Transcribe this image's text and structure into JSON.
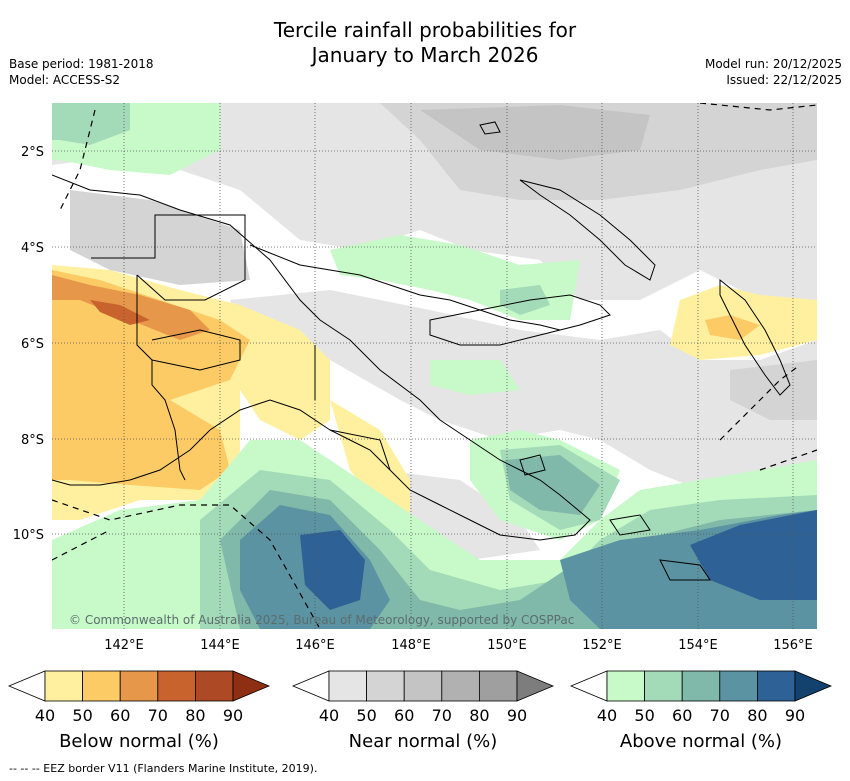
{
  "title_line1": "Tercile rainfall probabilities for",
  "title_line2": "January to March 2026",
  "meta": {
    "base_period": "Base period: 1981-2018",
    "model": "Model: ACCESS-S2",
    "model_run": "Model run: 20/12/2025",
    "issued": "Issued: 22/12/2025"
  },
  "map": {
    "lat_labels": [
      "2°S",
      "4°S",
      "6°S",
      "8°S",
      "10°S"
    ],
    "lon_labels": [
      "142°E",
      "144°E",
      "146°E",
      "148°E",
      "150°E",
      "152°E",
      "154°E",
      "156°E"
    ],
    "copyright": "© Commonwealth of Australia 2025, Bureau of Meteorology, supported by COSPPac"
  },
  "legends": [
    {
      "title": "Below normal (%)",
      "ticks": [
        "40",
        "50",
        "60",
        "70",
        "80",
        "90"
      ],
      "colors": [
        "#fff0a0",
        "#fdcb65",
        "#e7974a",
        "#c8632e",
        "#ad4a25",
        "#8e2e13"
      ]
    },
    {
      "title": "Near normal (%)",
      "ticks": [
        "40",
        "50",
        "60",
        "70",
        "80",
        "90"
      ],
      "colors": [
        "#e5e5e5",
        "#d4d4d4",
        "#c4c4c4",
        "#b1b1b1",
        "#9f9f9f",
        "#7d7d7d"
      ]
    },
    {
      "title": "Above normal (%)",
      "ticks": [
        "40",
        "50",
        "60",
        "70",
        "80",
        "90"
      ],
      "colors": [
        "#c7f9c9",
        "#a3dab7",
        "#80b8aa",
        "#5b93a3",
        "#2e6195",
        "#13426f"
      ]
    }
  ],
  "footer": "--  --  -- EEZ border V11 (Flanders Marine Institute, 2019)."
}
